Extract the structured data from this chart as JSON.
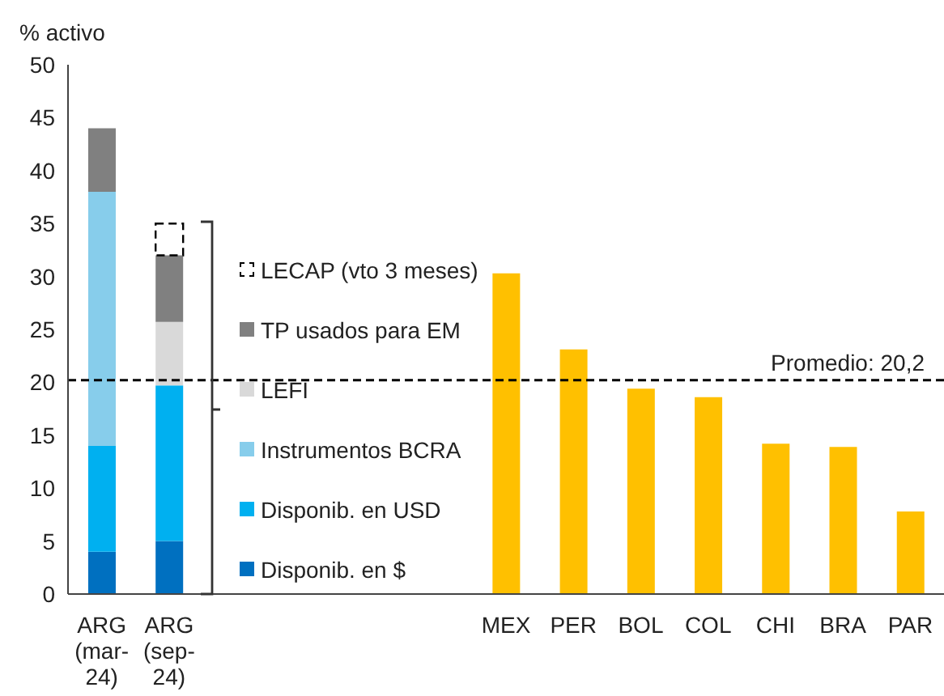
{
  "chart_data": {
    "type": "bar",
    "ylabel": "% activo",
    "stacked": true,
    "categories": [
      "ARG (mar-24)",
      "ARG (sep-24)",
      null,
      null,
      null,
      null,
      "MEX",
      "PER",
      "BOL",
      "COL",
      "CHI",
      "BRA",
      "PAR"
    ],
    "series": [
      {
        "name": "Disponib. en $",
        "color": "#0070c0",
        "values": [
          4,
          5,
          null,
          null,
          null,
          null,
          null,
          null,
          null,
          null,
          null,
          null,
          null
        ]
      },
      {
        "name": "Disponib. en USD",
        "color": "#00b0f0",
        "values": [
          10,
          14.7,
          null,
          null,
          null,
          null,
          null,
          null,
          null,
          null,
          null,
          null,
          null
        ]
      },
      {
        "name": "Instrumentos BCRA",
        "color": "#87cdeb",
        "values": [
          24,
          null,
          null,
          null,
          null,
          null,
          null,
          null,
          null,
          null,
          null,
          null,
          null
        ]
      },
      {
        "name": "LEFI",
        "color": "#d9d9d9",
        "values": [
          null,
          6,
          null,
          null,
          null,
          null,
          null,
          null,
          null,
          null,
          null,
          null,
          null
        ]
      },
      {
        "name": "TP usados para EM",
        "color": "#808080",
        "values": [
          6,
          6.3,
          null,
          null,
          null,
          null,
          null,
          null,
          null,
          null,
          null,
          null,
          null
        ]
      },
      {
        "name": "LECAP (vto 3 meses)",
        "color": "#000000",
        "line_style": "dashed",
        "values": [
          null,
          3,
          null,
          null,
          null,
          null,
          null,
          null,
          null,
          null,
          null,
          null,
          null
        ]
      },
      {
        "color": "#ffc000",
        "values": [
          null,
          null,
          null,
          null,
          null,
          null,
          30.3,
          23.1,
          19.4,
          18.6,
          14.2,
          13.9,
          7.8
        ]
      }
    ],
    "ylim": [
      0,
      50
    ],
    "yticks": [
      0,
      5,
      10,
      15,
      20,
      25,
      30,
      35,
      40,
      45,
      50
    ],
    "ref_lines": [
      {
        "axis": "y",
        "value": 20.2,
        "label": "Promedio: 20,2",
        "color": "#000000",
        "line_style": "dashed"
      }
    ],
    "legend": "center"
  }
}
